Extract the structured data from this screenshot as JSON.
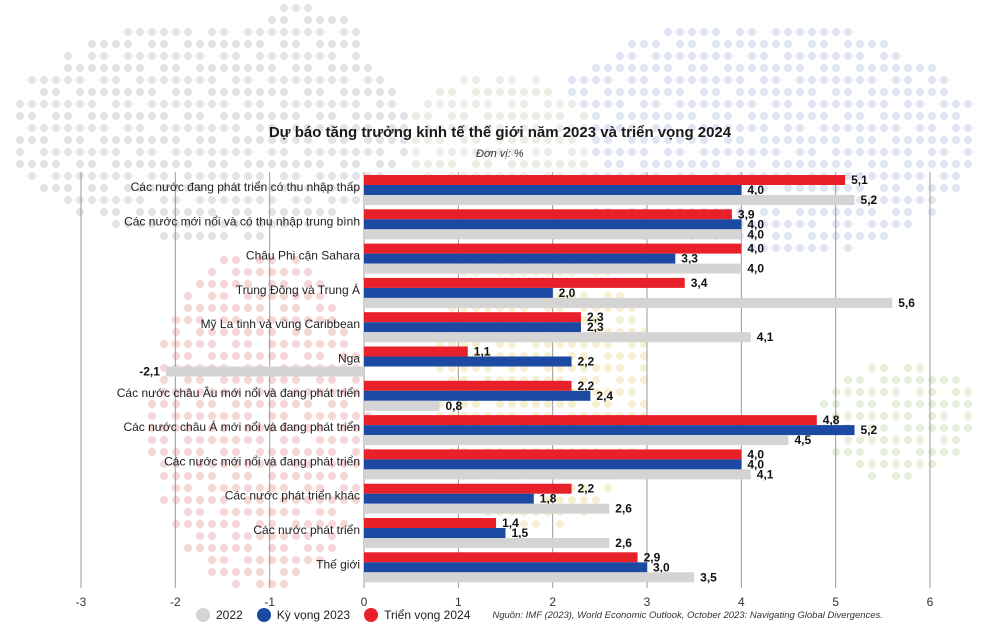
{
  "chart_data": {
    "type": "bar",
    "orientation": "horizontal",
    "title": "Dự báo tăng trưởng kinh tế thế giới năm 2023 và triển vọng 2024",
    "unit": "Đơn vị: %",
    "categories": [
      "Các nước đang phát triển có thu nhập thấp",
      "Các nước mới nổi và có thu nhập trung bình",
      "Châu Phi cận Sahara",
      "Trung Đông và Trung Á",
      "Mỹ La tinh và vùng Caribbean",
      "Nga",
      "Các nước châu Âu mới nổi và đang phát triển",
      "Các nước châu Á mới nổi và đang phát triển",
      "Các nước mới nổi và đang phát triển",
      "Các nước phát triển khác",
      "Các nước phát triển",
      "Thế giới"
    ],
    "series": [
      {
        "name": "Triển vọng 2024",
        "color": "#e8202a",
        "values": [
          5.1,
          3.9,
          4.0,
          3.4,
          2.3,
          1.1,
          2.2,
          4.8,
          4.0,
          2.2,
          1.4,
          2.9
        ]
      },
      {
        "name": "Kỳ vọng 2023",
        "color": "#1c4aa3",
        "values": [
          4.0,
          4.0,
          3.3,
          2.0,
          2.3,
          2.2,
          2.4,
          5.2,
          4.0,
          1.8,
          1.5,
          3.0
        ]
      },
      {
        "name": "2022",
        "color": "#d4d4d4",
        "values": [
          5.2,
          4.0,
          4.0,
          5.6,
          4.1,
          -2.1,
          0.8,
          4.5,
          4.1,
          2.6,
          2.6,
          3.5
        ]
      }
    ],
    "value_labels": [
      [
        "5,1",
        "3,9",
        "4,0",
        "3,4",
        "2,3",
        "1,1",
        "2,2",
        "4,8",
        "4,0",
        "2,2",
        "1,4",
        "2,9"
      ],
      [
        "4,0",
        "4,0",
        "3,3",
        "2,0",
        "2,3",
        "2,2",
        "2,4",
        "5,2",
        "4,0",
        "1,8",
        "1,5",
        "3,0"
      ],
      [
        "5,2",
        "4,0",
        "4,0",
        "5,6",
        "4,1",
        "-2,1",
        "0,8",
        "4,5",
        "4,1",
        "2,6",
        "2,6",
        "3,5"
      ]
    ],
    "xlim": [
      -3,
      6
    ],
    "xticks": [
      -3,
      -2,
      -1,
      0,
      1,
      2,
      3,
      4,
      5,
      6
    ],
    "xtick_labels": [
      "-3",
      "-2",
      "-1",
      "0",
      "1",
      "2",
      "3",
      "4",
      "5",
      "6"
    ],
    "grid": true,
    "legend_position": "bottom-left",
    "legend": [
      "2022",
      "Kỳ vọng 2023",
      "Triển vọng 2024"
    ],
    "source": "Nguồn: IMF (2023), World Economic Outlook, October 2023: Navigating Global Divergences."
  },
  "colors": {
    "s2022": "#d4d4d4",
    "s2023": "#1c4aa3",
    "s2024": "#e8202a",
    "grid": "#9a9a9a"
  }
}
